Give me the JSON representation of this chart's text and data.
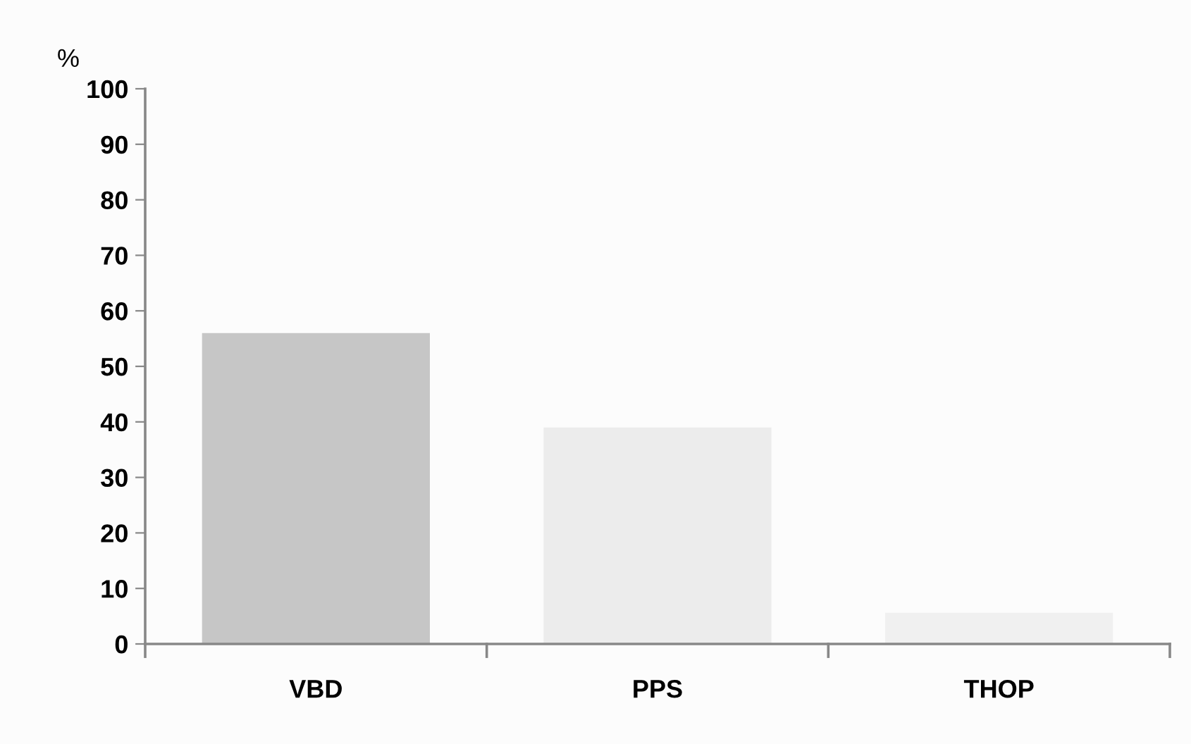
{
  "chart_data": {
    "type": "bar",
    "ylabel": "%",
    "categories": [
      "VBD",
      "PPS",
      "THOP"
    ],
    "values": [
      56,
      39,
      5.6
    ],
    "colors": [
      "#c6c6c6",
      "#ececec",
      "#f0f0f0"
    ],
    "ylim": [
      0,
      100
    ],
    "yticks": [
      0,
      10,
      20,
      30,
      40,
      50,
      60,
      70,
      80,
      90,
      100
    ],
    "grid": false,
    "legend": false
  }
}
